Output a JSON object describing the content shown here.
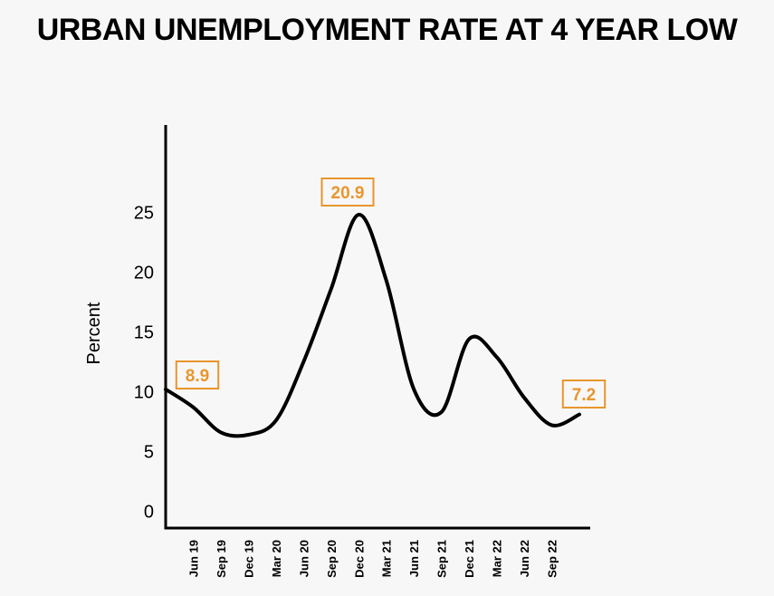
{
  "chart_data": {
    "type": "line",
    "title": "URBAN UNEMPLOYMENT RATE AT 4 YEAR LOW",
    "y_label": "Percent",
    "categories": [
      null,
      "Jun 19",
      "Sep 19",
      "Dec 19",
      "Mar 20",
      "Jun 20",
      "Sep 20",
      "Dec 20",
      "Mar 21",
      "Jun 21",
      "Sep 21",
      "Dec 21",
      "Mar 22",
      "Jun 22",
      "Sep 22",
      null
    ],
    "series": [
      {
        "name": "Urban unemployment rate",
        "color": "#000000",
        "values": [
          10.2,
          8.7,
          6.6,
          6.4,
          7.6,
          12.5,
          18.6,
          24.8,
          19.3,
          10.2,
          8.3,
          14.4,
          12.9,
          9.5,
          7.2,
          8.1
        ]
      }
    ],
    "ylim": [
      -1.4,
      32.3
    ],
    "yticks": [
      0,
      5,
      10,
      15,
      20,
      25
    ],
    "grid": false,
    "annotations": [
      "8.9",
      "20.9",
      "7.2"
    ],
    "annotation_color": "#e8962e"
  }
}
